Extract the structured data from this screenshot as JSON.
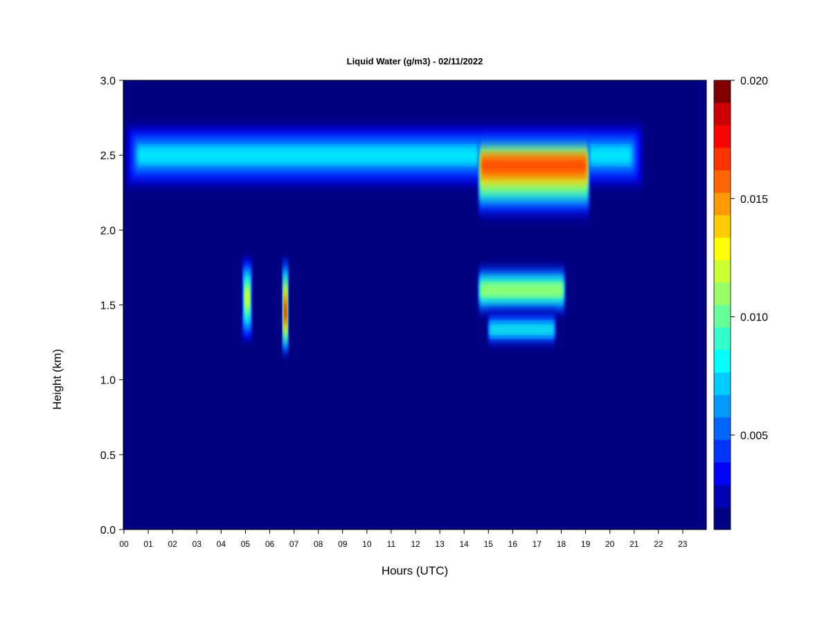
{
  "chart_data": {
    "type": "heatmap",
    "title": "Liquid Water (g/m3) - 02/11/2022",
    "xlabel": "Hours (UTC)",
    "ylabel": "Height (km)",
    "xlim": [
      0,
      24
    ],
    "ylim": [
      0,
      3.0
    ],
    "x_ticks": [
      "00",
      "01",
      "02",
      "03",
      "04",
      "05",
      "06",
      "07",
      "08",
      "09",
      "10",
      "11",
      "12",
      "13",
      "14",
      "15",
      "16",
      "17",
      "18",
      "19",
      "20",
      "21",
      "22",
      "23"
    ],
    "y_ticks": [
      "0.0",
      "0.5",
      "1.0",
      "1.5",
      "2.0",
      "2.5",
      "3.0"
    ],
    "colorbar": {
      "min": 0.001,
      "max": 0.02,
      "ticks": [
        "0.005",
        "0.010",
        "0.015",
        "0.020"
      ],
      "tick_values": [
        0.005,
        0.01,
        0.015,
        0.02
      ],
      "colors": [
        "#000080",
        "#0000b4",
        "#0000ff",
        "#0033ff",
        "#0066ff",
        "#0099ff",
        "#00ccff",
        "#00ffff",
        "#33ffcc",
        "#66ff99",
        "#99ff66",
        "#ccff33",
        "#ffff00",
        "#ffcc00",
        "#ff9900",
        "#ff6600",
        "#ff3300",
        "#ff0000",
        "#cc0000",
        "#800000"
      ]
    },
    "background_value": 0.001,
    "features": [
      {
        "label": "upper cloud layer",
        "x_range": [
          0.0,
          21.5
        ],
        "y_range": [
          2.27,
          2.72
        ],
        "center_y": 2.5,
        "peak_value": 0.008
      },
      {
        "label": "upper layer core",
        "x_range": [
          14.6,
          19.2
        ],
        "y_range": [
          2.05,
          2.62
        ],
        "center_y": 2.45,
        "peak_value": 0.017
      },
      {
        "label": "afternoon lower cloud",
        "x_range": [
          14.6,
          18.2
        ],
        "y_range": [
          1.43,
          1.77
        ],
        "center_y": 1.6,
        "peak_value": 0.012
      },
      {
        "label": "afternoon cloud base",
        "x_range": [
          15.0,
          17.8
        ],
        "y_range": [
          1.25,
          1.45
        ],
        "center_y": 1.33,
        "peak_value": 0.009
      },
      {
        "label": "05 UTC streak",
        "x_range": [
          4.9,
          5.3
        ],
        "y_range": [
          1.22,
          1.85
        ],
        "center_y": 1.55,
        "peak_value": 0.013
      },
      {
        "label": "06-07 UTC streak",
        "x_range": [
          6.55,
          6.8
        ],
        "y_range": [
          1.12,
          1.86
        ],
        "center_y": 1.45,
        "peak_value": 0.019
      }
    ]
  }
}
